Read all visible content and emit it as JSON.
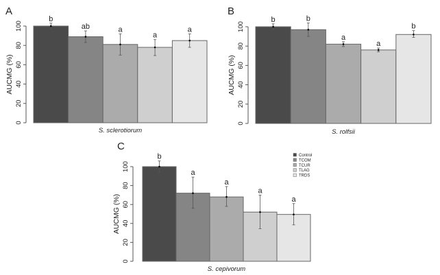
{
  "legend": {
    "entries": [
      "Control",
      "TCOM",
      "TCUR",
      "TLAG",
      "TRDS"
    ],
    "colors": [
      "#4a4a4a",
      "#858585",
      "#ababab",
      "#cfcfcf",
      "#e6e6e6"
    ]
  },
  "chart_data": [
    {
      "type": "bar",
      "panel_label": "A",
      "xlabel": "S. sclerotiorum",
      "ylabel": "AUCMG (%)",
      "ylim": [
        0,
        100
      ],
      "yticks": [
        "0",
        "20",
        "40",
        "60",
        "80",
        "100"
      ],
      "categories": [
        "Control",
        "TCOM",
        "TCUR",
        "TLAG",
        "TRDS"
      ],
      "values": [
        100,
        89,
        81,
        78,
        85
      ],
      "error_low": [
        97,
        83,
        70,
        69.5,
        78
      ],
      "error_high": [
        103,
        95,
        92,
        86,
        92
      ],
      "letters": [
        "b",
        "ab",
        "a",
        "a",
        "a"
      ]
    },
    {
      "type": "bar",
      "panel_label": "B",
      "xlabel": "S. rolfsii",
      "ylabel": "AUCMG (%)",
      "ylim": [
        0,
        100
      ],
      "yticks": [
        "0",
        "20",
        "40",
        "60",
        "80",
        "100"
      ],
      "categories": [
        "Control",
        "TCOM",
        "TCUR",
        "TLAG",
        "TRDS"
      ],
      "values": [
        100,
        97,
        82,
        76,
        92
      ],
      "error_low": [
        97,
        90,
        79.5,
        74,
        89
      ],
      "error_high": [
        103,
        104,
        84.5,
        78,
        96
      ],
      "letters": [
        "b",
        "b",
        "a",
        "a",
        "b"
      ]
    },
    {
      "type": "bar",
      "panel_label": "C",
      "xlabel": "S. cepivorum",
      "ylabel": "AUCMG (%)",
      "ylim": [
        0,
        100
      ],
      "yticks": [
        "0",
        "20",
        "40",
        "60",
        "80",
        "100"
      ],
      "categories": [
        "Control",
        "TCOM",
        "TCUR",
        "TLAG",
        "TRDS"
      ],
      "values": [
        100,
        72,
        68,
        52,
        49.5
      ],
      "error_low": [
        94,
        56,
        58,
        34.5,
        38.5
      ],
      "error_high": [
        106,
        89,
        79,
        70,
        61
      ],
      "letters": [
        "b",
        "a",
        "a",
        "a",
        "a"
      ],
      "legend": "top-right"
    }
  ]
}
